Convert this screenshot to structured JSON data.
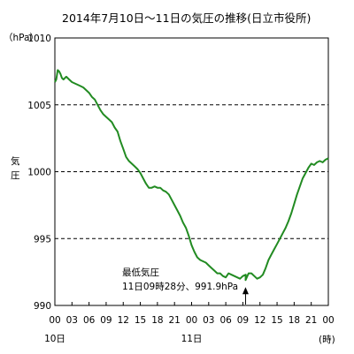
{
  "chart_data": {
    "type": "line",
    "title": "2014年7月10日～11日の気圧の推移(日立市役所)",
    "unit_label": "（hPa）",
    "ylabel": "気圧",
    "xlabel": "(時)",
    "ylim": [
      990,
      1010
    ],
    "yticks": [
      990,
      995,
      1000,
      1005,
      1010
    ],
    "ytick_labels": [
      "990",
      "995",
      "1000",
      "1005",
      "1010"
    ],
    "dashed_gridlines": [
      995,
      1000,
      1005
    ],
    "xlim": [
      0,
      48
    ],
    "xticks": [
      0,
      3,
      6,
      9,
      12,
      15,
      18,
      21,
      24,
      27,
      30,
      33,
      36,
      39,
      42,
      45,
      48
    ],
    "xtick_labels": [
      "00",
      "03",
      "06",
      "09",
      "12",
      "15",
      "18",
      "21",
      "00",
      "03",
      "06",
      "09",
      "12",
      "15",
      "18",
      "21",
      "00"
    ],
    "day_labels": [
      {
        "label": "10日",
        "hour": 0
      },
      {
        "label": "11日",
        "hour": 24
      }
    ],
    "series": [
      {
        "color": "#228b22",
        "x": [
          0,
          0.25,
          0.5,
          0.75,
          1,
          1.25,
          1.5,
          1.75,
          2,
          2.5,
          3,
          3.5,
          4,
          4.5,
          5,
          5.5,
          6,
          6.5,
          7,
          7.5,
          8,
          8.5,
          9,
          9.5,
          10,
          10.5,
          11,
          11.5,
          12,
          12.5,
          13,
          13.5,
          14,
          14.5,
          15,
          15.5,
          16,
          16.5,
          17,
          17.5,
          18,
          18.5,
          19,
          19.5,
          20,
          20.5,
          21,
          21.5,
          22,
          22.5,
          23,
          23.5,
          24,
          24.5,
          25,
          25.5,
          26,
          26.5,
          27,
          27.5,
          28,
          28.5,
          29,
          29.5,
          30,
          30.5,
          31,
          31.5,
          32,
          32.5,
          33,
          33.5,
          33.47,
          34,
          34.5,
          35,
          35.5,
          36,
          36.5,
          37,
          37.5,
          38,
          38.5,
          39,
          39.5,
          40,
          40.5,
          41,
          41.5,
          42,
          42.5,
          43,
          43.5,
          44,
          44.5,
          45,
          45.5,
          46,
          46.5,
          47,
          47.5,
          48
        ],
        "values": [
          1006.7,
          1006.9,
          1007.6,
          1007.5,
          1007.3,
          1007.0,
          1006.9,
          1007.0,
          1007.1,
          1006.9,
          1006.7,
          1006.6,
          1006.5,
          1006.4,
          1006.3,
          1006.1,
          1005.9,
          1005.6,
          1005.4,
          1005.0,
          1004.6,
          1004.3,
          1004.1,
          1003.9,
          1003.7,
          1003.3,
          1003.0,
          1002.3,
          1001.7,
          1001.1,
          1000.8,
          1000.6,
          1000.4,
          1000.2,
          999.9,
          999.5,
          999.1,
          998.8,
          998.8,
          998.9,
          998.8,
          998.8,
          998.6,
          998.5,
          998.3,
          997.9,
          997.5,
          997.1,
          996.7,
          996.2,
          995.8,
          995.2,
          994.5,
          994.0,
          993.6,
          993.4,
          993.3,
          993.2,
          993.0,
          992.8,
          992.6,
          992.4,
          992.4,
          992.2,
          992.1,
          992.4,
          992.3,
          992.2,
          992.1,
          992.0,
          992.2,
          992.3,
          991.9,
          992.4,
          992.4,
          992.2,
          992.0,
          992.1,
          992.3,
          992.8,
          993.4,
          993.8,
          994.2,
          994.6,
          995.0,
          995.4,
          995.8,
          996.3,
          996.9,
          997.6,
          998.3,
          998.9,
          999.5,
          999.9,
          1000.3,
          1000.6,
          1000.5,
          1000.7,
          1000.8,
          1000.7,
          1000.9,
          1001.0
        ]
      }
    ],
    "annotation": {
      "line1": "最低気圧",
      "line2": "11日09時28分、991.9hPa",
      "hour": 33.47,
      "value": 991.9
    }
  }
}
